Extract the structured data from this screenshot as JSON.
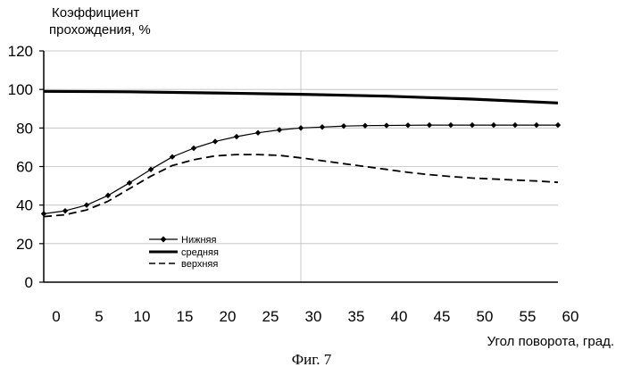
{
  "chart_data": {
    "type": "line",
    "ylabel_lines": [
      "Коэффициент",
      "прохождения, %"
    ],
    "xlabel": "Угол поворота, град.",
    "caption": "Фиг. 7",
    "xlim": [
      0,
      60
    ],
    "ylim": [
      0,
      120
    ],
    "x_ticks": [
      0,
      5,
      10,
      15,
      20,
      25,
      30,
      35,
      40,
      45,
      50,
      55,
      60
    ],
    "y_ticks": [
      0,
      20,
      40,
      60,
      80,
      100,
      120
    ],
    "grid": true,
    "legend_position": "lower-left",
    "series": [
      {
        "name": "Нижняя",
        "style": "solid-with-diamond-markers",
        "x": [
          0,
          2.5,
          5,
          7.5,
          10,
          12.5,
          15,
          17.5,
          20,
          22.5,
          25,
          27.5,
          30,
          32.5,
          35,
          37.5,
          40,
          42.5,
          45,
          47.5,
          50,
          52.5,
          55,
          57.5,
          60
        ],
        "values": [
          35.5,
          37,
          40,
          45,
          51.5,
          58.5,
          65,
          69.5,
          73,
          75.5,
          77.5,
          79,
          80,
          80.5,
          81,
          81.2,
          81.3,
          81.4,
          81.5,
          81.5,
          81.5,
          81.5,
          81.5,
          81.5,
          81.5
        ]
      },
      {
        "name": "средняя",
        "style": "thick-solid",
        "x": [
          0,
          10,
          20,
          30,
          40,
          50,
          60
        ],
        "values": [
          99,
          98.8,
          98.2,
          97.5,
          96.5,
          95,
          93
        ]
      },
      {
        "name": "верхняя",
        "style": "dashed",
        "x": [
          0,
          2.5,
          5,
          7.5,
          10,
          12.5,
          15,
          17.5,
          20,
          22.5,
          25,
          27.5,
          30,
          32.5,
          35,
          37.5,
          40,
          42.5,
          45,
          47.5,
          50,
          52.5,
          55,
          57.5,
          60
        ],
        "values": [
          34,
          35,
          37.5,
          42,
          48.5,
          55,
          60.5,
          63.5,
          65.5,
          66.2,
          66.2,
          65.8,
          64.5,
          63,
          61.5,
          60,
          58.5,
          57,
          55.8,
          54.8,
          54,
          53.5,
          53,
          52.5,
          51.8
        ]
      }
    ]
  }
}
